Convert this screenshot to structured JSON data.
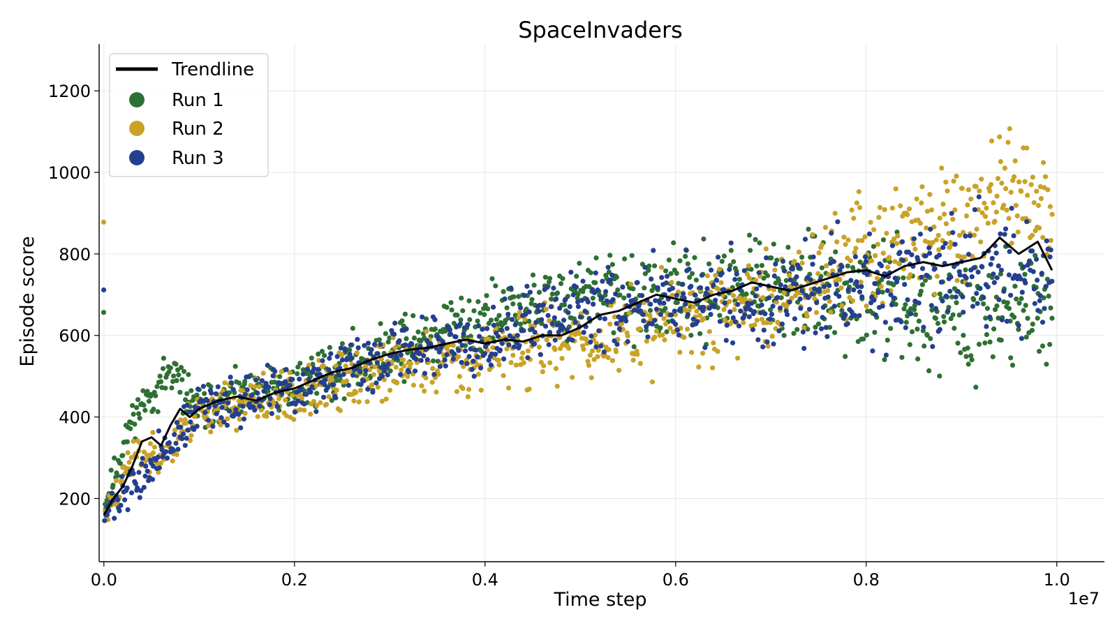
{
  "chart_data": {
    "type": "scatter",
    "title": "SpaceInvaders",
    "xlabel": "Time step",
    "ylabel": "Episode score",
    "x_offset_label": "1e7",
    "x_scale": 10000000,
    "xlim": [
      -50000,
      10500000
    ],
    "ylim": [
      45,
      1315
    ],
    "x_ticks": [
      0,
      2000000,
      4000000,
      6000000,
      8000000,
      10000000
    ],
    "x_tick_labels": [
      "0.0",
      "0.2",
      "0.4",
      "0.6",
      "0.8",
      "1.0"
    ],
    "y_ticks": [
      200,
      400,
      600,
      800,
      1000,
      1200
    ],
    "y_tick_labels": [
      "200",
      "400",
      "600",
      "800",
      "1000",
      "1200"
    ],
    "grid": true,
    "legend_position": "top-left",
    "trendline": {
      "name": "Trendline",
      "color": "#000000",
      "x": [
        0,
        100000,
        200000,
        300000,
        400000,
        500000,
        600000,
        700000,
        800000,
        900000,
        1000000,
        1200000,
        1400000,
        1600000,
        1800000,
        2000000,
        2200000,
        2400000,
        2600000,
        2800000,
        3000000,
        3200000,
        3400000,
        3600000,
        3800000,
        4000000,
        4200000,
        4400000,
        4600000,
        4800000,
        5000000,
        5200000,
        5400000,
        5600000,
        5800000,
        6000000,
        6200000,
        6400000,
        6600000,
        6800000,
        7000000,
        7200000,
        7400000,
        7600000,
        7800000,
        8000000,
        8200000,
        8400000,
        8600000,
        8800000,
        9000000,
        9200000,
        9400000,
        9600000,
        9800000,
        9950000
      ],
      "y": [
        160,
        200,
        230,
        280,
        340,
        350,
        330,
        380,
        420,
        400,
        420,
        440,
        450,
        440,
        460,
        470,
        490,
        510,
        520,
        540,
        555,
        565,
        570,
        580,
        590,
        580,
        590,
        585,
        600,
        600,
        620,
        650,
        660,
        680,
        700,
        690,
        680,
        700,
        710,
        730,
        720,
        710,
        725,
        740,
        755,
        760,
        745,
        770,
        780,
        770,
        780,
        790,
        840,
        800,
        830,
        760
      ]
    },
    "series": [
      {
        "name": "Run 1",
        "color": "#2e7033",
        "x_start": 0,
        "x_end": 9950000,
        "n": 900,
        "seed": 11,
        "profile": [
          [
            0,
            170
          ],
          [
            300000,
            400
          ],
          [
            700000,
            510
          ],
          [
            1000000,
            420
          ],
          [
            2000000,
            480
          ],
          [
            3000000,
            560
          ],
          [
            4000000,
            640
          ],
          [
            5000000,
            700
          ],
          [
            6000000,
            690
          ],
          [
            7000000,
            720
          ],
          [
            8000000,
            700
          ],
          [
            9000000,
            650
          ],
          [
            9950000,
            690
          ]
        ]
      },
      {
        "name": "Run 2",
        "color": "#c9a227",
        "x_start": 0,
        "x_end": 9950000,
        "n": 900,
        "seed": 23,
        "profile": [
          [
            0,
            150
          ],
          [
            300000,
            300
          ],
          [
            700000,
            320
          ],
          [
            1000000,
            420
          ],
          [
            2000000,
            450
          ],
          [
            3000000,
            520
          ],
          [
            4000000,
            560
          ],
          [
            5000000,
            580
          ],
          [
            6000000,
            640
          ],
          [
            7000000,
            690
          ],
          [
            8000000,
            810
          ],
          [
            9000000,
            870
          ],
          [
            9400000,
            960
          ],
          [
            9950000,
            880
          ]
        ]
      },
      {
        "name": "Run 3",
        "color": "#253f8f",
        "x_start": 0,
        "x_end": 9950000,
        "n": 900,
        "seed": 37,
        "profile": [
          [
            0,
            160
          ],
          [
            300000,
            230
          ],
          [
            700000,
            330
          ],
          [
            1000000,
            420
          ],
          [
            2000000,
            460
          ],
          [
            3000000,
            560
          ],
          [
            4000000,
            600
          ],
          [
            5000000,
            660
          ],
          [
            6000000,
            700
          ],
          [
            7000000,
            680
          ],
          [
            8000000,
            730
          ],
          [
            9000000,
            760
          ],
          [
            9950000,
            740
          ]
        ]
      }
    ]
  }
}
